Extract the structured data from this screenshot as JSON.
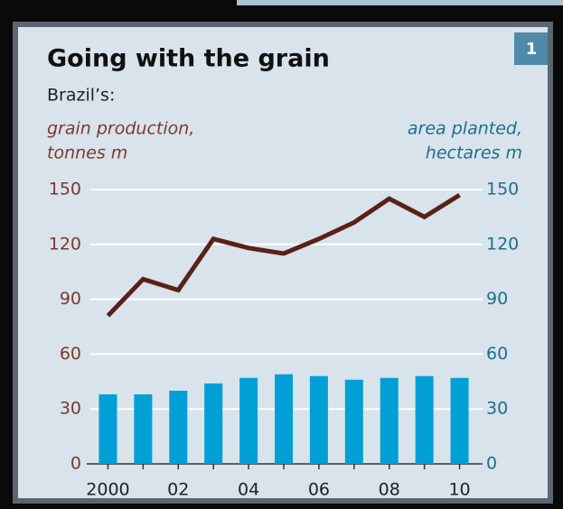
{
  "chart_data": {
    "type": "bar-line",
    "title": "Going with the grain",
    "subtitle": "Brazil’s:",
    "badge": "1",
    "y_label": [
      "grain production,",
      "tonnes m"
    ],
    "y2_label": [
      "area planted,",
      "hectares m"
    ],
    "categories": [
      "2000",
      null,
      "02",
      null,
      "04",
      null,
      "06",
      null,
      "08",
      null,
      "10"
    ],
    "series": [
      {
        "type": "line",
        "axis": "y",
        "color": "#5a2016",
        "values": [
          81,
          101,
          95,
          123,
          118,
          115,
          123,
          132,
          145,
          135,
          147
        ]
      },
      {
        "type": "bar",
        "axis": "y2",
        "color": "#00a0d6",
        "values": [
          38,
          38,
          40,
          44,
          47,
          49,
          48,
          46,
          47,
          48,
          47
        ]
      }
    ],
    "ylim": [
      0,
      150
    ],
    "yticks": [
      0,
      30,
      60,
      90,
      120,
      150
    ],
    "y2lim": [
      0,
      150
    ],
    "y2ticks": [
      0,
      30,
      60,
      90,
      120,
      150
    ],
    "grid": true
  }
}
